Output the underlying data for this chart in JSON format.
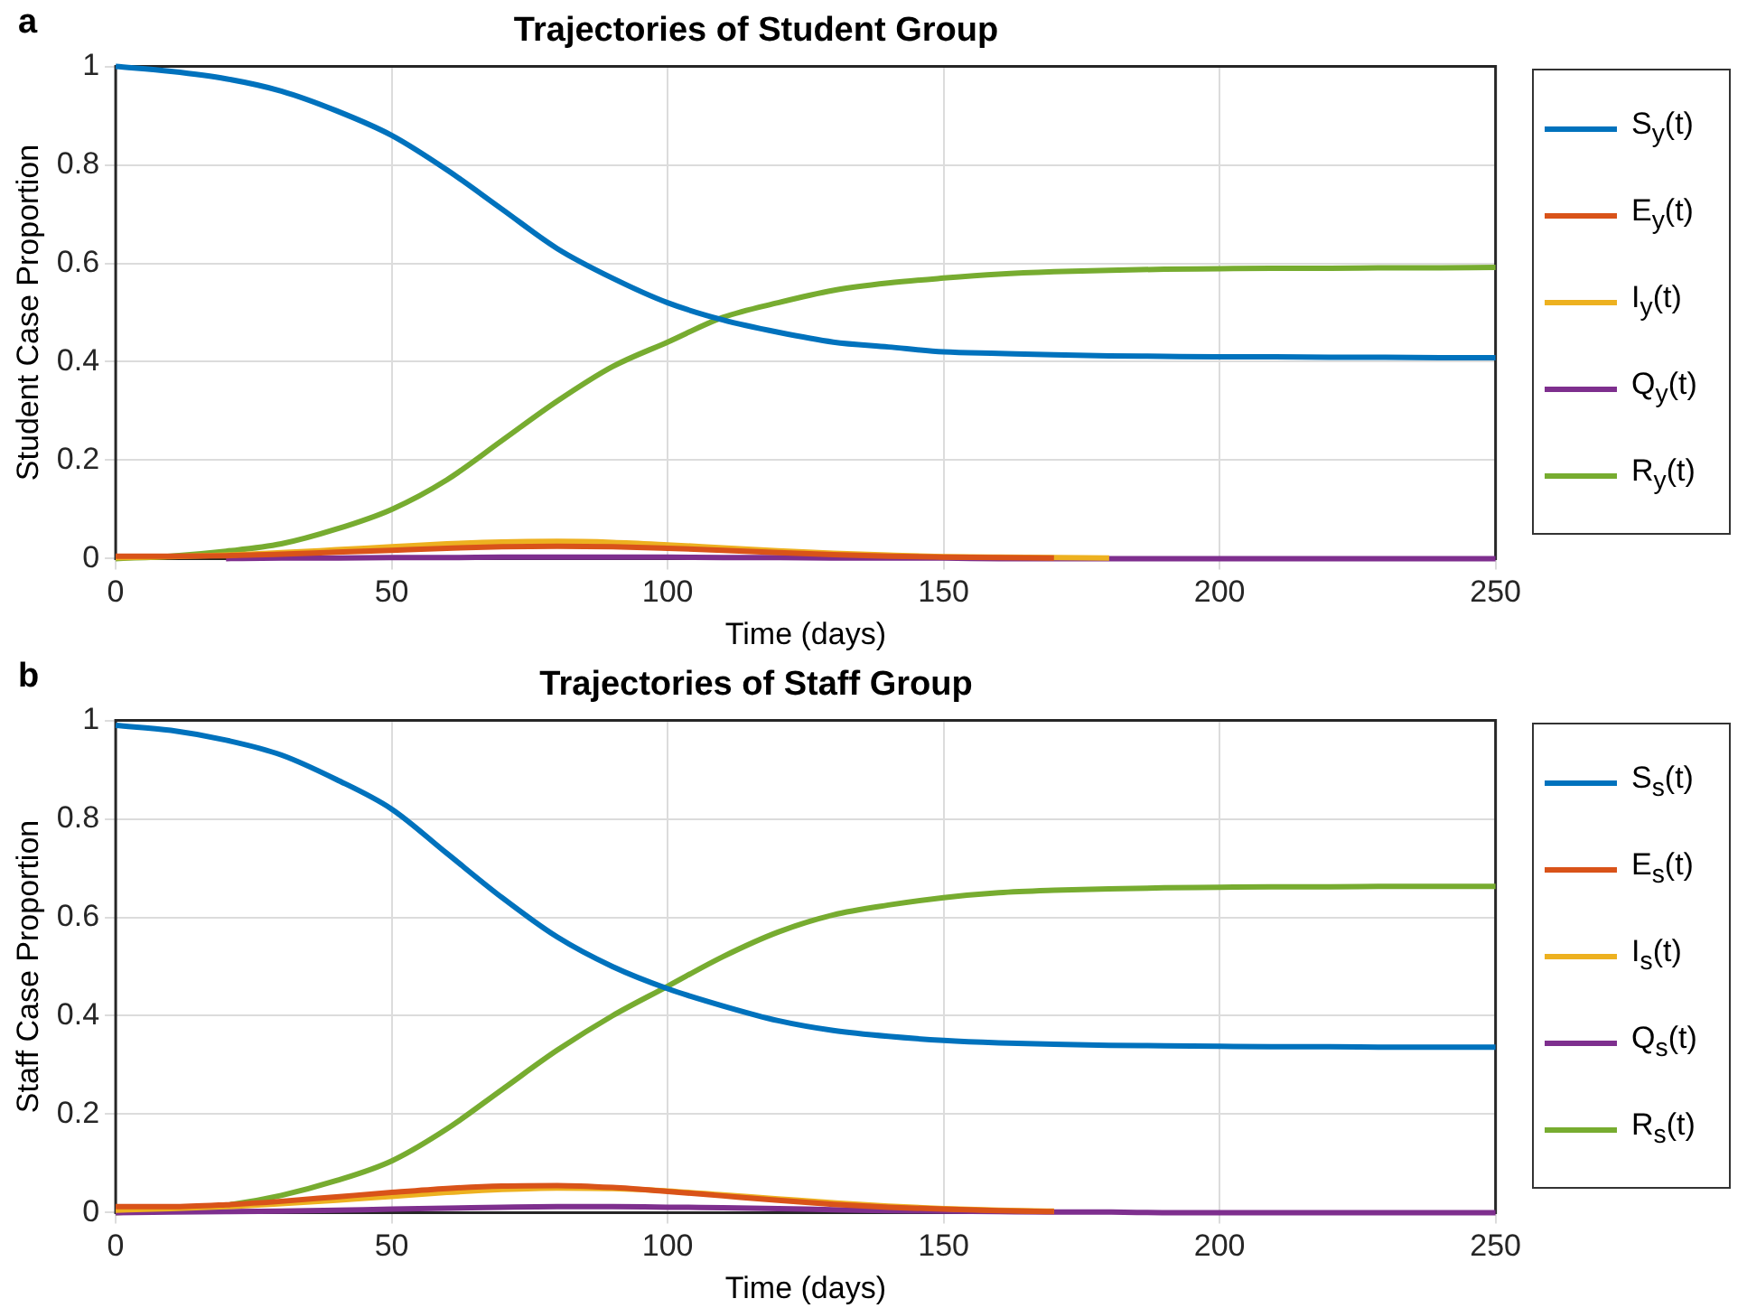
{
  "chart_data": [
    {
      "type": "line",
      "title": "Trajectories of Student Group",
      "xlabel": "Time (days)",
      "ylabel": "Student Case Proportion",
      "annotations": [
        "a"
      ],
      "x": [
        0,
        10,
        20,
        30,
        40,
        50,
        60,
        70,
        80,
        90,
        100,
        110,
        120,
        130,
        140,
        150,
        160,
        170,
        180,
        190,
        200,
        210,
        220,
        230,
        240,
        250
      ],
      "xlim": [
        0,
        250
      ],
      "xticks": [
        0,
        50,
        100,
        150,
        200,
        250
      ],
      "ylim": [
        0,
        1
      ],
      "yticks": [
        0,
        0.2,
        0.4,
        0.6,
        0.8,
        1
      ],
      "grid": true,
      "legend": "right",
      "line_style": "solid",
      "marker": "none",
      "series": [
        {
          "name": "S$_{y}$(t)",
          "color": "#0072bd",
          "values": [
            1.0,
            0.99,
            0.975,
            0.95,
            0.91,
            0.86,
            0.79,
            0.71,
            0.63,
            0.57,
            0.52,
            0.485,
            0.46,
            0.44,
            0.43,
            0.42,
            0.417,
            0.414,
            0.412,
            0.411,
            0.41,
            0.41,
            0.409,
            0.409,
            0.408,
            0.408
          ]
        },
        {
          "name": "E$_{y}$(t)",
          "color": "#d95319",
          "values": [
            0.005,
            0.005,
            0.006,
            0.009,
            0.013,
            0.017,
            0.021,
            0.024,
            0.025,
            0.024,
            0.021,
            0.017,
            0.012,
            0.008,
            0.005,
            0.003,
            0.002,
            0.001,
            null,
            null,
            null,
            null,
            null,
            null,
            null,
            null
          ]
        },
        {
          "name": "I$_{y}$(t)",
          "color": "#edb120",
          "values": [
            0.002,
            0.004,
            0.007,
            0.012,
            0.018,
            0.024,
            0.03,
            0.034,
            0.035,
            0.033,
            0.028,
            0.022,
            0.016,
            0.011,
            0.007,
            0.004,
            0.003,
            0.002,
            0.001,
            null,
            null,
            null,
            null,
            null,
            null,
            null
          ]
        },
        {
          "name": "Q$_{y}$(t)",
          "color": "#7e2f8e",
          "values": [
            null,
            null,
            0,
            0.001,
            0.001,
            0.002,
            0.002,
            0.003,
            0.003,
            0.003,
            0.003,
            0.002,
            0.002,
            0.001,
            0.001,
            0.001,
            0,
            0,
            0,
            0,
            0,
            0,
            0,
            0,
            0,
            0
          ]
        },
        {
          "name": "R$_{y}$(t)",
          "color": "#77ac30",
          "values": [
            0,
            0.005,
            0.015,
            0.03,
            0.06,
            0.1,
            0.16,
            0.24,
            0.32,
            0.39,
            0.44,
            0.49,
            0.52,
            0.545,
            0.56,
            0.57,
            0.578,
            0.583,
            0.586,
            0.588,
            0.589,
            0.59,
            0.59,
            0.591,
            0.591,
            0.592
          ]
        }
      ]
    },
    {
      "type": "line",
      "title": "Trajectories of Staff Group",
      "xlabel": "Time (days)",
      "ylabel": "Staff Case Proportion",
      "annotations": [
        "b"
      ],
      "x": [
        0,
        10,
        20,
        30,
        40,
        50,
        60,
        70,
        80,
        90,
        100,
        110,
        120,
        130,
        140,
        150,
        160,
        170,
        180,
        190,
        200,
        210,
        220,
        230,
        240,
        250
      ],
      "xlim": [
        0,
        250
      ],
      "xticks": [
        0,
        50,
        100,
        150,
        200,
        250
      ],
      "ylim": [
        0,
        1
      ],
      "yticks": [
        0,
        0.2,
        0.4,
        0.6,
        0.8,
        1
      ],
      "grid": true,
      "legend": "right",
      "line_style": "solid",
      "marker": "none",
      "series": [
        {
          "name": "S$_{s}$(t)",
          "color": "#0072bd",
          "values": [
            0.99,
            0.98,
            0.96,
            0.93,
            0.88,
            0.82,
            0.73,
            0.64,
            0.56,
            0.5,
            0.455,
            0.42,
            0.39,
            0.37,
            0.358,
            0.35,
            0.345,
            0.342,
            0.34,
            0.339,
            0.338,
            0.337,
            0.337,
            0.336,
            0.336,
            0.336
          ]
        },
        {
          "name": "E$_{s}$(t)",
          "color": "#d95319",
          "values": [
            0.012,
            0.012,
            0.016,
            0.023,
            0.032,
            0.041,
            0.049,
            0.054,
            0.055,
            0.051,
            0.043,
            0.034,
            0.025,
            0.017,
            0.011,
            0.007,
            0.004,
            0.002,
            null,
            null,
            null,
            null,
            null,
            null,
            null,
            null
          ]
        },
        {
          "name": "I$_{s}$(t)",
          "color": "#edb120",
          "values": [
            0.005,
            0.008,
            0.012,
            0.018,
            0.025,
            0.033,
            0.041,
            0.047,
            0.05,
            0.049,
            0.044,
            0.036,
            0.028,
            0.02,
            0.013,
            0.008,
            0.005,
            0.003,
            null,
            null,
            null,
            null,
            null,
            null,
            null,
            null
          ]
        },
        {
          "name": "Q$_{s}$(t)",
          "color": "#7e2f8e",
          "values": [
            0,
            0.001,
            0.002,
            0.003,
            0.005,
            0.007,
            0.009,
            0.011,
            0.012,
            0.012,
            0.011,
            0.01,
            0.008,
            0.006,
            0.004,
            0.003,
            0.002,
            0.001,
            0.001,
            0,
            0,
            0,
            0,
            0,
            0,
            0
          ]
        },
        {
          "name": "R$_{s}$(t)",
          "color": "#77ac30",
          "values": [
            0,
            0.005,
            0.015,
            0.035,
            0.065,
            0.105,
            0.17,
            0.25,
            0.33,
            0.4,
            0.46,
            0.52,
            0.57,
            0.605,
            0.625,
            0.64,
            0.65,
            0.655,
            0.658,
            0.66,
            0.661,
            0.662,
            0.662,
            0.663,
            0.663,
            0.663
          ]
        }
      ]
    }
  ]
}
